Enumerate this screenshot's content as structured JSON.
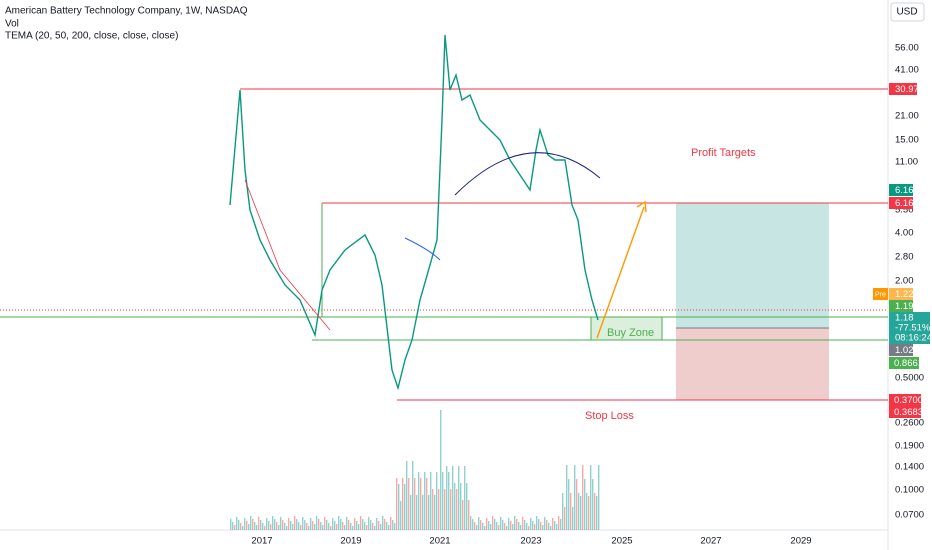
{
  "header": {
    "title": "American Battery Technology Company, 1W, NASDAQ",
    "volume": "Vol",
    "indicator": "TEMA (20, 50, 200, close, close, close)",
    "currency": "USD"
  },
  "annotations": {
    "profit": "Profit Targets",
    "buy": "Buy Zone",
    "stop": "Stop Loss"
  },
  "price_axis": [
    "56.00",
    "41.00",
    "21.00",
    "15.00",
    "11.00",
    "5.50",
    "4.00",
    "2.80",
    "2.00",
    "0.5000",
    "0.2600",
    "0.1900",
    "0.1400",
    "0.1000",
    "0.0700"
  ],
  "price_tags": {
    "t1": "30.97",
    "t2": "6.16",
    "t3": "6.16",
    "pre": "Pre",
    "pre_price": "1.22",
    "t4": "1.19",
    "last": "1.18",
    "change": "-77.51%",
    "countdown": "08:16:24",
    "t5": "1.02",
    "t6": "0.8661",
    "t7": "0.3700",
    "t8": "0.3683"
  },
  "time_axis": [
    "2017",
    "2019",
    "2021",
    "2023",
    "2025",
    "2027",
    "2029"
  ]
}
